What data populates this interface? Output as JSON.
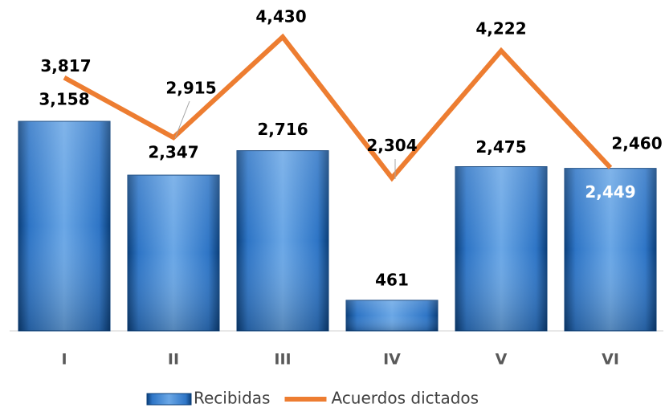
{
  "chart_data": {
    "type": "bar",
    "categories": [
      "I",
      "II",
      "III",
      "IV",
      "V",
      "VI"
    ],
    "series": [
      {
        "name": "Recibidas",
        "type": "bar",
        "color": "#2e75c6",
        "values": [
          3158,
          2347,
          2716,
          461,
          2475,
          2449
        ],
        "value_labels": [
          "3,158",
          "2,347",
          "2,716",
          "461",
          "2,475",
          "2,449"
        ]
      },
      {
        "name": "Acuerdos dictados",
        "type": "line",
        "color": "#ed7d31",
        "values": [
          3817,
          2915,
          4430,
          2304,
          4222,
          2460
        ],
        "value_labels": [
          "3,817",
          "2,915",
          "4,430",
          "2,304",
          "4,222",
          "2,460"
        ]
      }
    ],
    "legend": "bottom"
  }
}
